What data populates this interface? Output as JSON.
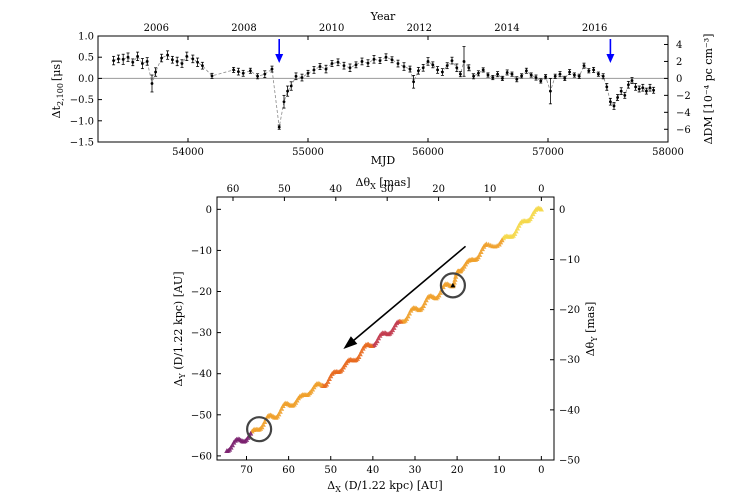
{
  "chart_data": [
    {
      "type": "scatter",
      "panel": "top",
      "title": "",
      "xlabel": "MJD",
      "ylabel": "Δt_{2,100} [μs]",
      "ylabel_main": "Δt",
      "ylabel_sub": "2,100",
      "ylabel_unit": "[μs]",
      "top_xlabel": "Year",
      "right_ylabel": "ΔDM [10⁻⁴ pc cm⁻³]",
      "right_ylabel_main": "ΔDM",
      "right_ylabel_unit": "[10⁻⁴ pc cm⁻³]",
      "xlim": [
        53250,
        58000
      ],
      "ylim": [
        -1.5,
        1.0
      ],
      "right_ylim": [
        -7.5,
        5.0
      ],
      "xticks": [
        "54000",
        "55000",
        "56000",
        "57000",
        "58000"
      ],
      "yticks": [
        "−1.5",
        "−1.0",
        "−0.5",
        "0.0",
        "0.5",
        "1.0"
      ],
      "year_ticks": [
        "2006",
        "2008",
        "2010",
        "2012",
        "2014",
        "2016"
      ],
      "right_yticks": [
        "−6",
        "−4",
        "−2",
        "0",
        "2",
        "4"
      ],
      "arrows_mjd": [
        54760,
        57520
      ],
      "series": [
        {
          "name": "timing residuals",
          "points": [
            [
              53380,
              0.42,
              0.1
            ],
            [
              53420,
              0.46,
              0.09
            ],
            [
              53460,
              0.45,
              0.12
            ],
            [
              53500,
              0.5,
              0.1
            ],
            [
              53540,
              0.38,
              0.08
            ],
            [
              53580,
              0.52,
              0.1
            ],
            [
              53620,
              0.35,
              0.12
            ],
            [
              53660,
              0.4,
              0.09
            ],
            [
              53700,
              -0.12,
              0.2
            ],
            [
              53730,
              0.15,
              0.1
            ],
            [
              53780,
              0.48,
              0.09
            ],
            [
              53830,
              0.55,
              0.1
            ],
            [
              53870,
              0.44,
              0.08
            ],
            [
              53910,
              0.4,
              0.1
            ],
            [
              53950,
              0.35,
              0.09
            ],
            [
              53990,
              0.52,
              0.1
            ],
            [
              54040,
              0.46,
              0.09
            ],
            [
              54080,
              0.38,
              0.1
            ],
            [
              54120,
              0.3,
              0.08
            ],
            [
              54200,
              0.06,
              0.06
            ],
            [
              54380,
              0.2,
              0.06
            ],
            [
              54420,
              0.16,
              0.08
            ],
            [
              54460,
              0.12,
              0.07
            ],
            [
              54520,
              0.18,
              0.06
            ],
            [
              54580,
              0.05,
              0.06
            ],
            [
              54640,
              0.1,
              0.08
            ],
            [
              54700,
              0.22,
              0.07
            ],
            [
              54760,
              -1.15,
              0.05
            ],
            [
              54800,
              -0.55,
              0.15
            ],
            [
              54830,
              -0.3,
              0.12
            ],
            [
              54860,
              -0.18,
              0.1
            ],
            [
              54900,
              0.05,
              0.08
            ],
            [
              54950,
              0.02,
              0.08
            ],
            [
              55000,
              0.12,
              0.07
            ],
            [
              55050,
              0.2,
              0.08
            ],
            [
              55100,
              0.28,
              0.07
            ],
            [
              55150,
              0.22,
              0.09
            ],
            [
              55200,
              0.35,
              0.07
            ],
            [
              55250,
              0.38,
              0.08
            ],
            [
              55300,
              0.3,
              0.08
            ],
            [
              55350,
              0.25,
              0.09
            ],
            [
              55400,
              0.32,
              0.07
            ],
            [
              55450,
              0.4,
              0.08
            ],
            [
              55500,
              0.36,
              0.08
            ],
            [
              55550,
              0.45,
              0.09
            ],
            [
              55600,
              0.42,
              0.07
            ],
            [
              55650,
              0.5,
              0.08
            ],
            [
              55700,
              0.44,
              0.07
            ],
            [
              55750,
              0.35,
              0.08
            ],
            [
              55800,
              0.28,
              0.09
            ],
            [
              55850,
              0.22,
              0.07
            ],
            [
              55880,
              -0.08,
              0.15
            ],
            [
              55920,
              0.18,
              0.08
            ],
            [
              55960,
              0.25,
              0.08
            ],
            [
              56000,
              0.4,
              0.09
            ],
            [
              56040,
              0.32,
              0.07
            ],
            [
              56080,
              0.2,
              0.08
            ],
            [
              56120,
              0.15,
              0.08
            ],
            [
              56160,
              0.3,
              0.07
            ],
            [
              56200,
              0.42,
              0.08
            ],
            [
              56240,
              0.25,
              0.09
            ],
            [
              56270,
              0.1,
              0.06
            ],
            [
              56300,
              0.4,
              0.35
            ],
            [
              56340,
              0.25,
              0.07
            ],
            [
              56380,
              0.05,
              0.06
            ],
            [
              56420,
              0.12,
              0.06
            ],
            [
              56460,
              0.2,
              0.05
            ],
            [
              56500,
              0.08,
              0.05
            ],
            [
              56540,
              0.02,
              0.05
            ],
            [
              56580,
              0.1,
              0.06
            ],
            [
              56620,
              0.0,
              0.05
            ],
            [
              56660,
              0.14,
              0.06
            ],
            [
              56700,
              0.1,
              0.05
            ],
            [
              56740,
              -0.02,
              0.06
            ],
            [
              56780,
              0.06,
              0.05
            ],
            [
              56820,
              0.18,
              0.06
            ],
            [
              56860,
              0.08,
              0.05
            ],
            [
              56900,
              0.02,
              0.06
            ],
            [
              56940,
              -0.06,
              0.05
            ],
            [
              56980,
              0.04,
              0.05
            ],
            [
              57020,
              -0.3,
              0.3
            ],
            [
              57060,
              0.05,
              0.05
            ],
            [
              57100,
              0.1,
              0.06
            ],
            [
              57140,
              0.0,
              0.05
            ],
            [
              57180,
              0.15,
              0.06
            ],
            [
              57220,
              0.08,
              0.05
            ],
            [
              57260,
              0.05,
              0.05
            ],
            [
              57300,
              0.3,
              0.06
            ],
            [
              57340,
              0.18,
              0.05
            ],
            [
              57380,
              0.2,
              0.06
            ],
            [
              57420,
              0.1,
              0.05
            ],
            [
              57460,
              0.05,
              0.06
            ],
            [
              57490,
              -0.2,
              0.08
            ],
            [
              57520,
              -0.55,
              0.08
            ],
            [
              57550,
              -0.65,
              0.08
            ],
            [
              57580,
              -0.45,
              0.07
            ],
            [
              57610,
              -0.3,
              0.08
            ],
            [
              57640,
              -0.4,
              0.07
            ],
            [
              57670,
              -0.15,
              0.08
            ],
            [
              57700,
              -0.05,
              0.07
            ],
            [
              57730,
              -0.2,
              0.08
            ],
            [
              57760,
              -0.25,
              0.07
            ],
            [
              57790,
              -0.22,
              0.08
            ],
            [
              57820,
              -0.3,
              0.07
            ],
            [
              57850,
              -0.22,
              0.08
            ],
            [
              57880,
              -0.28,
              0.07
            ]
          ]
        }
      ]
    },
    {
      "type": "scatter",
      "panel": "bottom",
      "title": "",
      "xlabel": "Δ_X (D/1.22 kpc) [AU]",
      "xlabel_main": "Δ",
      "xlabel_sub": "X",
      "xlabel_rest": " (D/1.22 kpc) [AU]",
      "ylabel": "Δ_Y (D/1.22 kpc) [AU]",
      "ylabel_main": "Δ",
      "ylabel_sub": "Y",
      "ylabel_rest": " (D/1.22 kpc) [AU]",
      "top_xlabel": "Δθ_X [mas]",
      "top_xlabel_main": "Δθ",
      "top_xlabel_sub": "X",
      "top_xlabel_rest": " [mas]",
      "right_ylabel": "Δθ_Y [mas]",
      "right_ylabel_main": "Δθ",
      "right_ylabel_sub": "Y",
      "right_ylabel_rest": " [mas]",
      "xlim": [
        77,
        -3
      ],
      "ylim": [
        -61,
        3
      ],
      "xticks": [
        "70",
        "60",
        "50",
        "40",
        "30",
        "20",
        "10",
        "0"
      ],
      "yticks": [
        "0",
        "−10",
        "−20",
        "−30",
        "−40",
        "−50",
        "−60"
      ],
      "top_xticks": [
        "60",
        "50",
        "40",
        "30",
        "20",
        "10",
        "0"
      ],
      "right_yticks": [
        "0",
        "−10",
        "−20",
        "−30",
        "−40",
        "−50"
      ],
      "circles": [
        [
          21,
          -18.5
        ],
        [
          67,
          -53.5
        ]
      ],
      "arrow": {
        "from": [
          18,
          -9
        ],
        "to": [
          47,
          -34
        ]
      },
      "track": [
        [
          0,
          0
        ],
        [
          2,
          -1
        ],
        [
          4,
          -3
        ],
        [
          6,
          -5
        ],
        [
          8,
          -7
        ],
        [
          10,
          -8
        ],
        [
          13,
          -9
        ],
        [
          15,
          -11
        ],
        [
          17,
          -13
        ],
        [
          19,
          -14
        ],
        [
          20,
          -16
        ],
        [
          21,
          -18
        ],
        [
          23,
          -19
        ],
        [
          25,
          -21
        ],
        [
          27,
          -22
        ],
        [
          29,
          -24
        ],
        [
          31,
          -25
        ],
        [
          33,
          -27
        ],
        [
          35,
          -29
        ],
        [
          37,
          -30
        ],
        [
          39,
          -32
        ],
        [
          41,
          -33
        ],
        [
          43,
          -35
        ],
        [
          45,
          -37
        ],
        [
          47,
          -38
        ],
        [
          49,
          -40
        ],
        [
          51,
          -42
        ],
        [
          53,
          -43
        ],
        [
          55,
          -44
        ],
        [
          57,
          -46
        ],
        [
          59,
          -47
        ],
        [
          61,
          -48
        ],
        [
          63,
          -50
        ],
        [
          65,
          -51
        ],
        [
          67,
          -53
        ],
        [
          69,
          -55
        ],
        [
          71,
          -56
        ],
        [
          73,
          -57
        ],
        [
          75,
          -58.5
        ]
      ],
      "colors": [
        "#f5d84a",
        "#f0a02a",
        "#e8691e",
        "#c23b4e",
        "#7a1f6e"
      ]
    }
  ]
}
